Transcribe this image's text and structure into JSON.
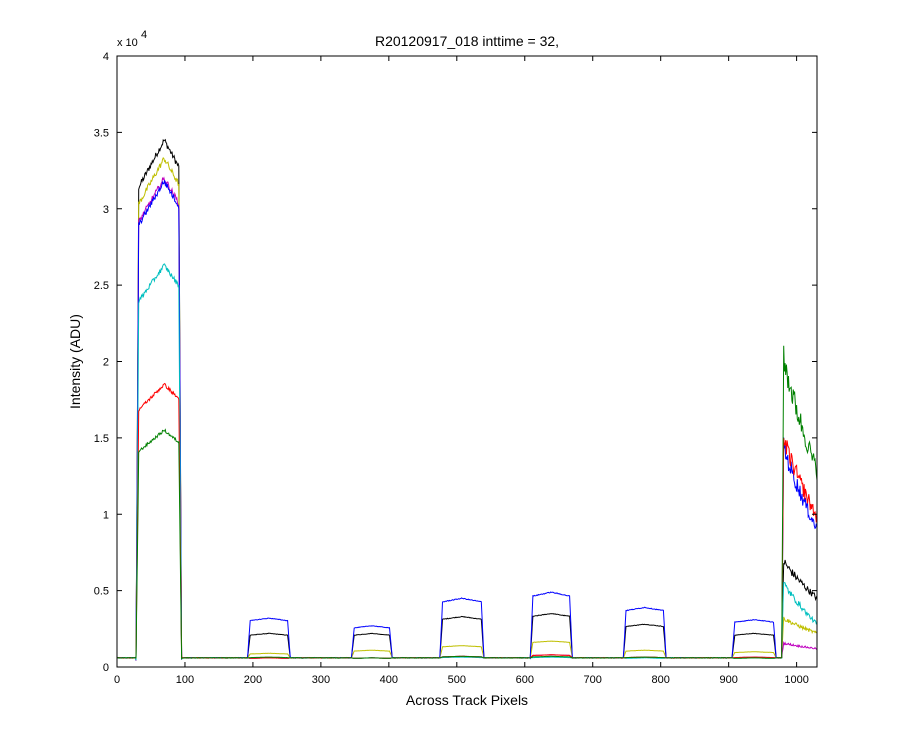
{
  "chart_data": {
    "type": "line",
    "title": "R20120917_018 inttime = 32,",
    "xlabel": "Across Track Pixels",
    "ylabel": "Intensity (ADU)",
    "xlim": [
      0,
      1030
    ],
    "ylim": [
      0,
      40000
    ],
    "xticks": [
      0,
      100,
      200,
      300,
      400,
      500,
      600,
      700,
      800,
      900,
      1000
    ],
    "yticks": [
      0,
      5000,
      10000,
      15000,
      20000,
      25000,
      30000,
      35000,
      40000
    ],
    "ytick_labels": [
      "0",
      "0.5",
      "1",
      "1.5",
      "2",
      "2.5",
      "3",
      "3.5",
      "4"
    ],
    "y_exponent_label": "x 10",
    "y_exponent": "4",
    "grid": false,
    "legend": "none",
    "segments": [
      {
        "start": 28,
        "end": 95
      },
      {
        "start": 192,
        "end": 255
      },
      {
        "start": 345,
        "end": 405
      },
      {
        "start": 475,
        "end": 540
      },
      {
        "start": 608,
        "end": 670
      },
      {
        "start": 745,
        "end": 808
      },
      {
        "start": 905,
        "end": 970
      }
    ],
    "baseline": 600,
    "edge_start": 978,
    "series": [
      {
        "color": "#000000",
        "levels": [
          34500,
          2200,
          2200,
          3300,
          3500,
          2800,
          2200
        ],
        "edge": [
          7200,
          4500
        ]
      },
      {
        "color": "#bfbf00",
        "levels": [
          33300,
          900,
          1100,
          1400,
          1700,
          1100,
          1000
        ],
        "edge": [
          3300,
          2200
        ]
      },
      {
        "color": "#bf00bf",
        "levels": [
          32000,
          600,
          600,
          700,
          800,
          650,
          650
        ],
        "edge": [
          1600,
          1200
        ]
      },
      {
        "color": "#0000ff",
        "levels": [
          31800,
          3200,
          2700,
          4500,
          4900,
          3900,
          3100
        ],
        "edge": [
          15000,
          9000
        ]
      },
      {
        "color": "#00bfbf",
        "levels": [
          26300,
          600,
          600,
          650,
          650,
          600,
          600
        ],
        "edge": [
          5800,
          2800
        ]
      },
      {
        "color": "#ff0000",
        "levels": [
          18500,
          600,
          600,
          700,
          800,
          650,
          650
        ],
        "edge": [
          15500,
          9800
        ]
      },
      {
        "color": "#008000",
        "levels": [
          15500,
          650,
          600,
          700,
          700,
          650,
          600
        ],
        "edge": [
          21000,
          12800
        ]
      }
    ]
  }
}
